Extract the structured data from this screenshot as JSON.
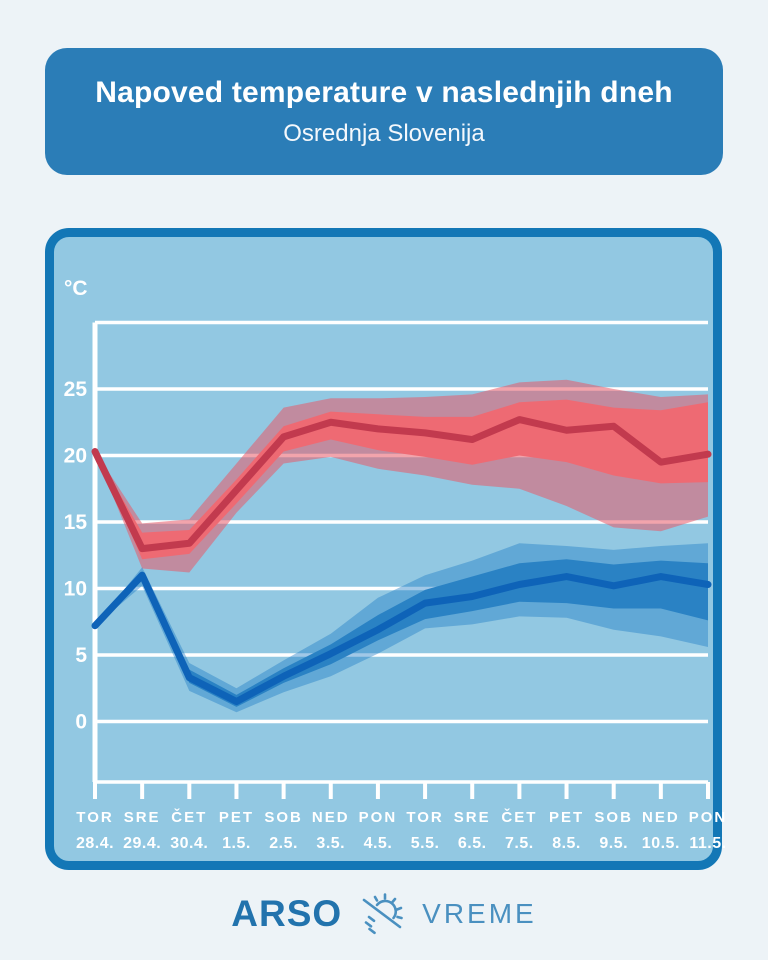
{
  "header": {
    "title": "Napoved temperature v naslednjih dneh",
    "subtitle": "Osrednja Slovenija"
  },
  "footer": {
    "brand": "ARSO",
    "product": "VREME",
    "logo_icon": "sun-slash-icon",
    "brand_color": "#2273ad",
    "product_color": "#4a90c0"
  },
  "colors": {
    "page_background": "#edf3f7",
    "header_background": "#2b7db7",
    "panel_background": "#92c8e2",
    "panel_border": "#1377b6",
    "grid": "#ffffff",
    "axis_text": "#ffffff"
  },
  "chart_data": {
    "type": "line",
    "unit": "°C",
    "grid": "horizontal-white",
    "legend": "none",
    "ylim": [
      -5,
      30
    ],
    "yticks": [
      0,
      5,
      10,
      15,
      20,
      25
    ],
    "x_day_names": [
      "TOR",
      "SRE",
      "ČET",
      "PET",
      "SOB",
      "NED",
      "PON",
      "TOR",
      "SRE",
      "ČET",
      "PET",
      "SOB",
      "NED",
      "PON"
    ],
    "x_dates": [
      "28.4.",
      "29.4.",
      "30.4.",
      "1.5.",
      "2.5.",
      "3.5.",
      "4.5.",
      "5.5.",
      "6.5.",
      "7.5.",
      "8.5.",
      "9.5.",
      "10.5.",
      "11.5."
    ],
    "series": [
      {
        "name": "max-temperature",
        "line_color": "#c23a4e",
        "inner_band_color": "#ee6a73",
        "outer_band_color": "rgba(232,90,104,0.55)",
        "values": [
          20.3,
          13.0,
          13.4,
          17.4,
          21.4,
          22.5,
          22.0,
          21.7,
          21.2,
          22.7,
          21.9,
          22.2,
          19.5,
          20.1
        ],
        "inner_band": [
          [
            20.3,
            20.3
          ],
          [
            12.2,
            14.2
          ],
          [
            12.6,
            14.4
          ],
          [
            16.4,
            18.2
          ],
          [
            20.3,
            22.2
          ],
          [
            21.2,
            23.3
          ],
          [
            20.4,
            23.1
          ],
          [
            19.9,
            22.9
          ],
          [
            19.3,
            22.9
          ],
          [
            20.0,
            24.0
          ],
          [
            19.5,
            24.2
          ],
          [
            18.5,
            23.6
          ],
          [
            17.9,
            23.4
          ],
          [
            18.0,
            24.0
          ]
        ],
        "outer_band": [
          [
            20.3,
            20.3
          ],
          [
            11.5,
            14.9
          ],
          [
            11.2,
            15.2
          ],
          [
            15.7,
            19.4
          ],
          [
            19.4,
            23.6
          ],
          [
            19.9,
            24.3
          ],
          [
            19.0,
            24.3
          ],
          [
            18.5,
            24.4
          ],
          [
            17.8,
            24.6
          ],
          [
            17.5,
            25.5
          ],
          [
            16.2,
            25.7
          ],
          [
            14.6,
            25.0
          ],
          [
            14.3,
            24.4
          ],
          [
            15.4,
            24.6
          ]
        ]
      },
      {
        "name": "min-temperature",
        "line_color": "#0e63b8",
        "inner_band_color": "#2a82c4",
        "outer_band_color": "rgba(31,125,197,0.42)",
        "values": [
          7.2,
          11.0,
          3.3,
          1.5,
          3.4,
          5.1,
          6.9,
          8.9,
          9.4,
          10.3,
          10.9,
          10.2,
          10.9,
          10.3
        ],
        "inner_band": [
          [
            7.2,
            7.2
          ],
          [
            10.6,
            11.3
          ],
          [
            2.9,
            3.9
          ],
          [
            1.1,
            2.0
          ],
          [
            2.9,
            4.0
          ],
          [
            4.3,
            5.8
          ],
          [
            6.1,
            8.0
          ],
          [
            7.7,
            9.9
          ],
          [
            8.3,
            10.9
          ],
          [
            9.0,
            11.9
          ],
          [
            8.9,
            12.2
          ],
          [
            8.5,
            11.8
          ],
          [
            8.5,
            12.1
          ],
          [
            7.6,
            11.9
          ]
        ],
        "outer_band": [
          [
            7.2,
            7.2
          ],
          [
            10.2,
            11.6
          ],
          [
            2.3,
            4.4
          ],
          [
            0.7,
            2.5
          ],
          [
            2.2,
            4.6
          ],
          [
            3.4,
            6.6
          ],
          [
            5.1,
            9.3
          ],
          [
            7.0,
            11.0
          ],
          [
            7.3,
            12.1
          ],
          [
            7.9,
            13.4
          ],
          [
            7.8,
            13.2
          ],
          [
            6.9,
            12.9
          ],
          [
            6.4,
            13.2
          ],
          [
            5.6,
            13.4
          ]
        ]
      }
    ]
  }
}
